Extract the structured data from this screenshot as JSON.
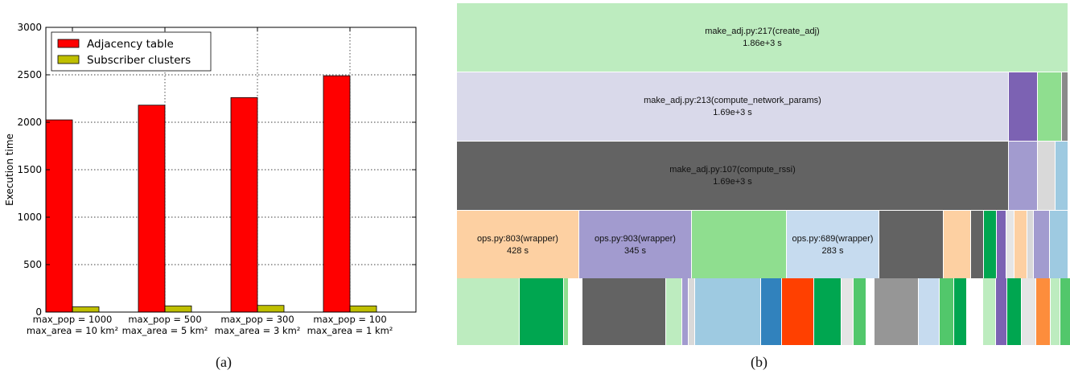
{
  "chart_data": [
    {
      "type": "bar",
      "caption": "(a)",
      "categories": [
        [
          "max_pop = 1000",
          "max_area = 10 km²"
        ],
        [
          "max_pop = 500",
          "max_area = 5 km²"
        ],
        [
          "max_pop = 300",
          "max_area = 3 km²"
        ],
        [
          "max_pop = 100",
          "max_area = 1 km²"
        ]
      ],
      "series": [
        {
          "name": "Adjacency table",
          "color": "#ff0000",
          "values": [
            2025,
            2180,
            2260,
            2490
          ]
        },
        {
          "name": "Subscriber clusters",
          "color": "#bfbf00",
          "values": [
            55,
            65,
            70,
            65
          ]
        }
      ],
      "ylabel": "Execution time",
      "ylim": [
        0,
        3000
      ],
      "yticks": [
        0,
        500,
        1000,
        1500,
        2000,
        2500,
        3000
      ],
      "grid": true,
      "legend_position": "top-left"
    },
    {
      "type": "icicle",
      "caption": "(b)",
      "rows": [
        [
          {
            "label": "make_adj.py:217(create_adj)",
            "value": "1.86e+3 s",
            "color": "#bdecbf"
          }
        ],
        [
          {
            "label": "make_adj.py:213(compute_network_params)",
            "value": "1.69e+3 s",
            "color": "#d9d9ea"
          },
          {
            "label": "",
            "value": "",
            "color": "#7c62b3"
          },
          {
            "label": "",
            "value": "",
            "color": "#8fde8f"
          },
          {
            "label": "",
            "value": "",
            "color": "#8a8a8a"
          }
        ],
        [
          {
            "label": "make_adj.py:107(compute_rssi)",
            "value": "1.69e+3 s",
            "color": "#636363"
          },
          {
            "label": "",
            "value": "",
            "color": "#a29bcf"
          },
          {
            "label": "",
            "value": "",
            "color": "#d9d9d9"
          },
          {
            "label": "",
            "value": "",
            "color": "#9ecae1"
          }
        ],
        [
          {
            "label": "ops.py:803(wrapper)",
            "value": "428 s",
            "color": "#fdd0a2"
          },
          {
            "label": "ops.py:903(wrapper)",
            "value": "345 s",
            "color": "#a29bcf"
          },
          {
            "label": "",
            "value": "",
            "color": "#8fde8f"
          },
          {
            "label": "ops.py:689(wrapper)",
            "value": "283 s",
            "color": "#c6dbef"
          },
          {
            "label": "",
            "value": "",
            "color": "#636363"
          },
          {
            "label": "",
            "value": "",
            "color": "#fdd0a2"
          },
          {
            "label": "",
            "value": "",
            "color": "#636363"
          },
          {
            "label": "",
            "value": "",
            "color": "#00a650"
          },
          {
            "label": "",
            "value": "",
            "color": "#7c62b3"
          },
          {
            "label": "",
            "value": "",
            "color": "#e5e5e5"
          },
          {
            "label": "",
            "value": "",
            "color": "#fdd0a2"
          },
          {
            "label": "",
            "value": "",
            "color": "#d9d9d9"
          },
          {
            "label": "",
            "value": "",
            "color": "#a29bcf"
          },
          {
            "label": "",
            "value": "",
            "color": "#9ecae1"
          }
        ],
        [
          {
            "label": "",
            "value": "",
            "color": "#bdecbf"
          },
          {
            "label": "",
            "value": "",
            "color": "#00a650"
          },
          {
            "label": "",
            "value": "",
            "color": "#8fde8f"
          },
          {
            "label": "",
            "value": "",
            "color": "#ffffff"
          },
          {
            "label": "",
            "value": "",
            "color": "#636363"
          },
          {
            "label": "",
            "value": "",
            "color": "#bdecbf"
          },
          {
            "label": "",
            "value": "",
            "color": "#a29bcf"
          },
          {
            "label": "",
            "value": "",
            "color": "#d9d9d9"
          },
          {
            "label": "",
            "value": "",
            "color": "#9ecae1"
          },
          {
            "label": "",
            "value": "",
            "color": "#3182bd"
          },
          {
            "label": "",
            "value": "",
            "color": "#ff4000"
          },
          {
            "label": "",
            "value": "",
            "color": "#00a650"
          },
          {
            "label": "",
            "value": "",
            "color": "#e5e5e5"
          },
          {
            "label": "",
            "value": "",
            "color": "#52c76b"
          },
          {
            "label": "",
            "value": "",
            "color": "#ffffff"
          },
          {
            "label": "",
            "value": "",
            "color": "#969696"
          },
          {
            "label": "",
            "value": "",
            "color": "#c6dbef"
          },
          {
            "label": "",
            "value": "",
            "color": "#52c76b"
          },
          {
            "label": "",
            "value": "",
            "color": "#00a650"
          },
          {
            "label": "",
            "value": "",
            "color": "#ffffff"
          },
          {
            "label": "",
            "value": "",
            "color": "#bdecbf"
          },
          {
            "label": "",
            "value": "",
            "color": "#7c62b3"
          },
          {
            "label": "",
            "value": "",
            "color": "#00a650"
          },
          {
            "label": "",
            "value": "",
            "color": "#e5e5e5"
          },
          {
            "label": "",
            "value": "",
            "color": "#fd8d3c"
          },
          {
            "label": "",
            "value": "",
            "color": "#bdecbf"
          },
          {
            "label": "",
            "value": "",
            "color": "#52c76b"
          }
        ]
      ]
    }
  ]
}
